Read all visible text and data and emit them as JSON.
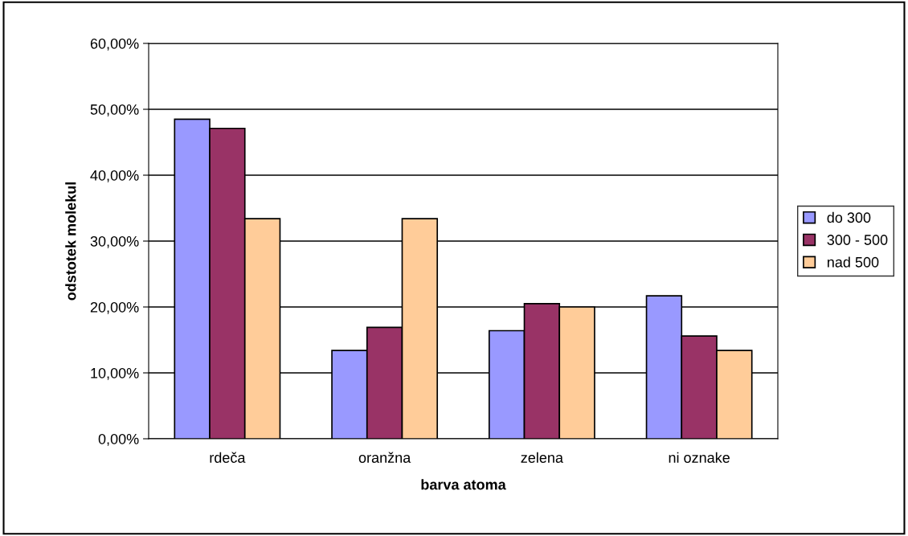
{
  "chart_data": {
    "type": "bar",
    "xlabel": "barva atoma",
    "ylabel": "odstotek molekul",
    "categories": [
      "rdeča",
      "oranžna",
      "zelena",
      "ni oznake"
    ],
    "series": [
      {
        "name": "do 300",
        "color": "#9999ff",
        "values": [
          48.5,
          13.4,
          16.4,
          21.7
        ]
      },
      {
        "name": "300 - 500",
        "color": "#993366",
        "values": [
          47.1,
          16.9,
          20.5,
          15.6
        ]
      },
      {
        "name": "nad 500",
        "color": "#ffcc99",
        "values": [
          33.4,
          33.4,
          20.0,
          13.4
        ]
      }
    ],
    "ylim": [
      0,
      60
    ],
    "yticks": [
      {
        "value": 0,
        "label": "0,00%"
      },
      {
        "value": 10,
        "label": "10,00%"
      },
      {
        "value": 20,
        "label": "20,00%"
      },
      {
        "value": 30,
        "label": "30,00%"
      },
      {
        "value": 40,
        "label": "40,00%"
      },
      {
        "value": 50,
        "label": "50,00%"
      },
      {
        "value": 60,
        "label": "60,00%"
      }
    ],
    "grid": "y",
    "legend": "right"
  }
}
